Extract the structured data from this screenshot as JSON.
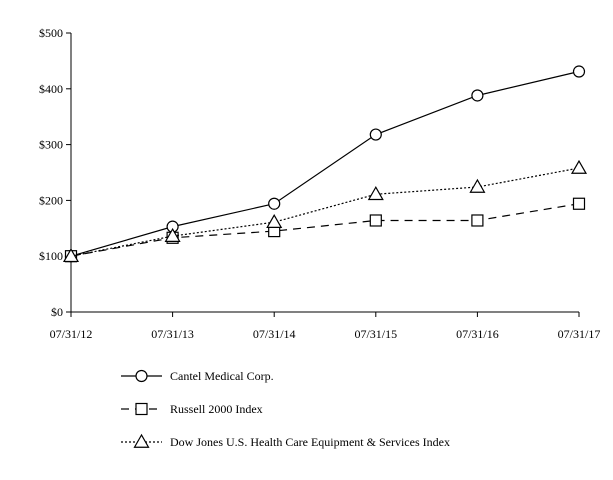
{
  "chart_data": {
    "type": "line",
    "title": "",
    "xlabel": "",
    "ylabel": "",
    "categories": [
      "07/31/12",
      "07/31/13",
      "07/31/14",
      "07/31/15",
      "07/31/16",
      "07/31/17"
    ],
    "ylim": [
      0,
      500
    ],
    "yticks": [
      0,
      100,
      200,
      300,
      400,
      500
    ],
    "ytick_labels": [
      "$0",
      "$100",
      "$200",
      "$300",
      "$400",
      "$500"
    ],
    "grid": false,
    "legend_position": "bottom",
    "series": [
      {
        "name": "Cantel Medical Corp.",
        "marker": "circle",
        "line_style": "solid",
        "values": [
          100,
          153,
          194,
          318,
          388,
          431
        ]
      },
      {
        "name": "Russell 2000 Index",
        "marker": "square",
        "line_style": "dashed",
        "values": [
          100,
          133,
          145,
          164,
          164,
          194
        ]
      },
      {
        "name": "Dow Jones U.S. Health Care Equipment & Services Index",
        "marker": "triangle",
        "line_style": "dotted",
        "values": [
          100,
          136,
          161,
          211,
          224,
          258
        ]
      }
    ]
  }
}
